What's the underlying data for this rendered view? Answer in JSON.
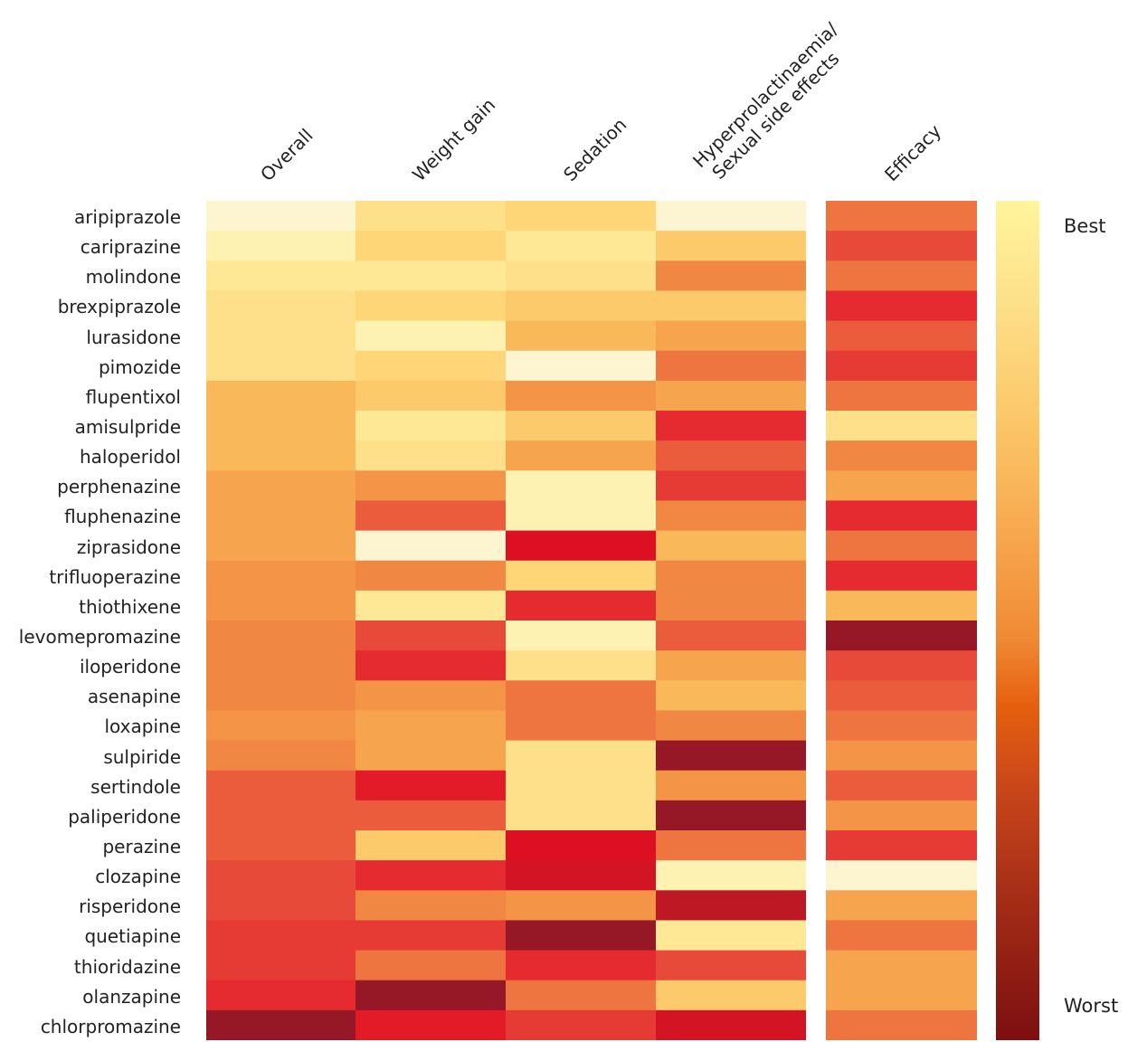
{
  "chart_data": {
    "type": "heatmap",
    "title": "",
    "columns": [
      "Overall",
      "Weight gain",
      "Sedation",
      "Hyperprolactinaemia/\nSexual side effects",
      "Efficacy"
    ],
    "column_lines": [
      [
        "Overall"
      ],
      [
        "Weight gain"
      ],
      [
        "Sedation"
      ],
      [
        "Hyperprolactinaemia/",
        "Sexual side effects"
      ],
      [
        "Efficacy"
      ]
    ],
    "rows": [
      "aripiprazole",
      "cariprazine",
      "molindone",
      "brexpiprazole",
      "lurasidone",
      "pimozide",
      "flupentixol",
      "amisulpride",
      "haloperidol",
      "perphenazine",
      "fluphenazine",
      "ziprasidone",
      "trifluoperazine",
      "thiothixene",
      "levomepromazine",
      "iloperidone",
      "asenapine",
      "loxapine",
      "sulpiride",
      "sertindole",
      "paliperidone",
      "perazine",
      "clozapine",
      "risperidone",
      "quetiapine",
      "thioridazine",
      "olanzapine",
      "chlorpromazine"
    ],
    "value_scale": "0 = worst, 1 = best",
    "values": [
      [
        1.0,
        0.8,
        0.75,
        1.0,
        0.4
      ],
      [
        0.92,
        0.75,
        0.88,
        0.7,
        0.3
      ],
      [
        0.85,
        0.88,
        0.8,
        0.45,
        0.4
      ],
      [
        0.82,
        0.76,
        0.68,
        0.7,
        0.2
      ],
      [
        0.82,
        0.9,
        0.6,
        0.55,
        0.33
      ],
      [
        0.82,
        0.75,
        1.0,
        0.4,
        0.25
      ],
      [
        0.65,
        0.72,
        0.5,
        0.55,
        0.4
      ],
      [
        0.65,
        0.86,
        0.7,
        0.2,
        0.8
      ],
      [
        0.6,
        0.8,
        0.53,
        0.33,
        0.47
      ],
      [
        0.55,
        0.5,
        0.92,
        0.25,
        0.58
      ],
      [
        0.55,
        0.34,
        0.92,
        0.45,
        0.18
      ],
      [
        0.55,
        1.0,
        0.12,
        0.62,
        0.38
      ],
      [
        0.52,
        0.43,
        0.75,
        0.45,
        0.18
      ],
      [
        0.5,
        0.86,
        0.2,
        0.45,
        0.65
      ],
      [
        0.46,
        0.3,
        0.9,
        0.34,
        0.0
      ],
      [
        0.46,
        0.22,
        0.8,
        0.55,
        0.3
      ],
      [
        0.46,
        0.48,
        0.4,
        0.6,
        0.36
      ],
      [
        0.48,
        0.58,
        0.4,
        0.46,
        0.42
      ],
      [
        0.47,
        0.57,
        0.8,
        0.02,
        0.48
      ],
      [
        0.37,
        0.14,
        0.8,
        0.48,
        0.36
      ],
      [
        0.35,
        0.36,
        0.82,
        0.0,
        0.48
      ],
      [
        0.34,
        0.7,
        0.09,
        0.38,
        0.25
      ],
      [
        0.28,
        0.2,
        0.07,
        0.94,
        1.0
      ],
      [
        0.28,
        0.46,
        0.5,
        0.04,
        0.58
      ],
      [
        0.24,
        0.27,
        0.0,
        0.86,
        0.4
      ],
      [
        0.23,
        0.42,
        0.2,
        0.32,
        0.56
      ],
      [
        0.22,
        0.0,
        0.4,
        0.7,
        0.56
      ],
      [
        0.0,
        0.14,
        0.25,
        0.08,
        0.42
      ]
    ],
    "colorbar": {
      "top_label": "Best",
      "bottom_label": "Worst"
    },
    "colormap": [
      [
        0.0,
        "#961725"
      ],
      [
        0.04,
        "#be1825"
      ],
      [
        0.07,
        "#d31424"
      ],
      [
        0.1,
        "#dc0f23"
      ],
      [
        0.15,
        "#e31a27"
      ],
      [
        0.2,
        "#e52b30"
      ],
      [
        0.25,
        "#e63a34"
      ],
      [
        0.3,
        "#e84a39"
      ],
      [
        0.35,
        "#eb5c3d"
      ],
      [
        0.4,
        "#ee7440"
      ],
      [
        0.45,
        "#f08742"
      ],
      [
        0.5,
        "#f39446"
      ],
      [
        0.55,
        "#f6a44e"
      ],
      [
        0.62,
        "#f9b85a"
      ],
      [
        0.7,
        "#fcc96b"
      ],
      [
        0.75,
        "#fed677"
      ],
      [
        0.8,
        "#fedf8a"
      ],
      [
        0.85,
        "#fee896"
      ],
      [
        0.92,
        "#fef2b3"
      ],
      [
        1.0,
        "#fcf5d0"
      ]
    ]
  }
}
